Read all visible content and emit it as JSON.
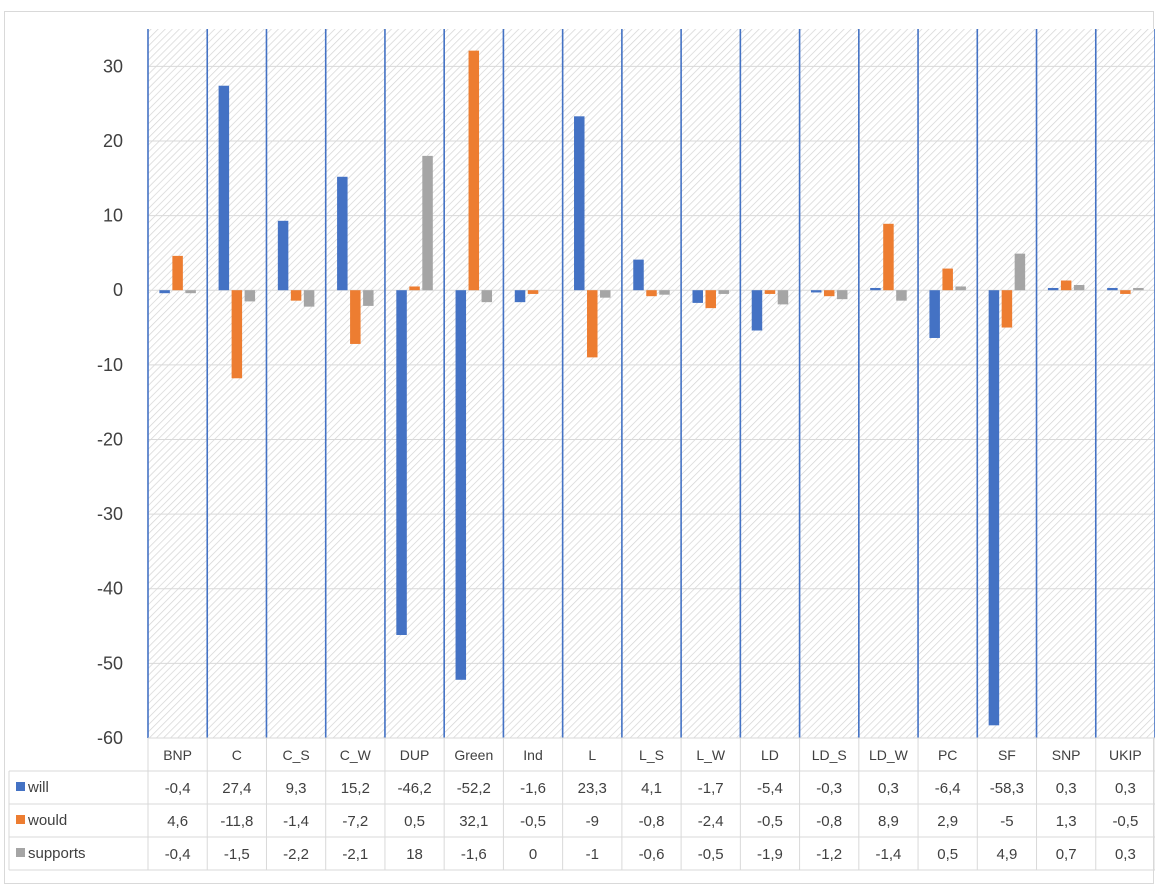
{
  "chart_data": {
    "type": "bar",
    "categories": [
      "BNP",
      "C",
      "C_S",
      "C_W",
      "DUP",
      "Green",
      "Ind",
      "L",
      "L_S",
      "L_W",
      "LD",
      "LD_S",
      "LD_W",
      "PC",
      "SF",
      "SNP",
      "UKIP"
    ],
    "series": [
      {
        "name": "will",
        "color": "#4472c4",
        "values": [
          -0.4,
          27.4,
          9.3,
          15.2,
          -46.2,
          -52.2,
          -1.6,
          23.3,
          4.1,
          -1.7,
          -5.4,
          -0.3,
          0.3,
          -6.4,
          -58.3,
          0.3,
          0.3
        ],
        "labels": [
          "-0,4",
          "27,4",
          "9,3",
          "15,2",
          "-46,2",
          "-52,2",
          "-1,6",
          "23,3",
          "4,1",
          "-1,7",
          "-5,4",
          "-0,3",
          "0,3",
          "-6,4",
          "-58,3",
          "0,3",
          "0,3"
        ]
      },
      {
        "name": "would",
        "color": "#ed7d31",
        "values": [
          4.6,
          -11.8,
          -1.4,
          -7.2,
          0.5,
          32.1,
          -0.5,
          -9,
          -0.8,
          -2.4,
          -0.5,
          -0.8,
          8.9,
          2.9,
          -5,
          1.3,
          -0.5
        ],
        "labels": [
          "4,6",
          "-11,8",
          "-1,4",
          "-7,2",
          "0,5",
          "32,1",
          "-0,5",
          "-9",
          "-0,8",
          "-2,4",
          "-0,5",
          "-0,8",
          "8,9",
          "2,9",
          "-5",
          "1,3",
          "-0,5"
        ]
      },
      {
        "name": "supports",
        "color": "#a5a5a5",
        "values": [
          -0.4,
          -1.5,
          -2.2,
          -2.1,
          18,
          -1.6,
          0,
          -1,
          -0.6,
          -0.5,
          -1.9,
          -1.2,
          -1.4,
          0.5,
          4.9,
          0.7,
          0.3
        ],
        "labels": [
          "-0,4",
          "-1,5",
          "-2,2",
          "-2,1",
          "18",
          "-1,6",
          "0",
          "-1",
          "-0,6",
          "-0,5",
          "-1,9",
          "-1,2",
          "-1,4",
          "0,5",
          "4,9",
          "0,7",
          "0,3"
        ]
      }
    ],
    "ylim": [
      -60,
      35
    ],
    "yticks": [
      30,
      20,
      10,
      0,
      -10,
      -20,
      -30,
      -40,
      -50,
      -60
    ],
    "title": "",
    "xlabel": "",
    "ylabel": "",
    "gridlines": true,
    "data_table": true,
    "legend": "in data table"
  }
}
